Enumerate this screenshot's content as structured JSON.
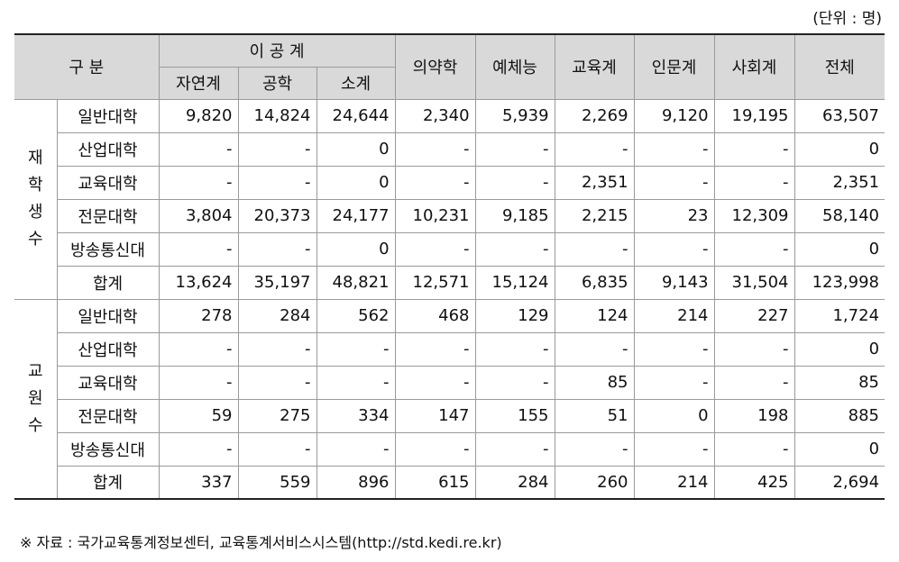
{
  "unit_note": "(단위 : 명)",
  "header": {
    "category": "구 분",
    "stem": "이 공 계",
    "stem_sub": [
      "자연계",
      "공학",
      "소계"
    ],
    "others": [
      "의약학",
      "예체능",
      "교육계",
      "인문계",
      "사회계",
      "전체"
    ]
  },
  "sections": [
    {
      "label": "재학생수",
      "rows": [
        {
          "name": "일반대학",
          "values": [
            "9,820",
            "14,824",
            "24,644",
            "2,340",
            "5,939",
            "2,269",
            "9,120",
            "19,195",
            "63,507"
          ]
        },
        {
          "name": "산업대학",
          "values": [
            "-",
            "-",
            "0",
            "-",
            "-",
            "-",
            "-",
            "-",
            "0"
          ]
        },
        {
          "name": "교육대학",
          "values": [
            "-",
            "-",
            "0",
            "-",
            "-",
            "2,351",
            "-",
            "-",
            "2,351"
          ]
        },
        {
          "name": "전문대학",
          "values": [
            "3,804",
            "20,373",
            "24,177",
            "10,231",
            "9,185",
            "2,215",
            "23",
            "12,309",
            "58,140"
          ]
        },
        {
          "name": "방송통신대",
          "values": [
            "-",
            "-",
            "0",
            "-",
            "-",
            "-",
            "-",
            "-",
            "0"
          ]
        },
        {
          "name": "합계",
          "values": [
            "13,624",
            "35,197",
            "48,821",
            "12,571",
            "15,124",
            "6,835",
            "9,143",
            "31,504",
            "123,998"
          ]
        }
      ]
    },
    {
      "label": "교원수",
      "rows": [
        {
          "name": "일반대학",
          "values": [
            "278",
            "284",
            "562",
            "468",
            "129",
            "124",
            "214",
            "227",
            "1,724"
          ]
        },
        {
          "name": "산업대학",
          "values": [
            "-",
            "-",
            "-",
            "-",
            "-",
            "-",
            "-",
            "-",
            "0"
          ]
        },
        {
          "name": "교육대학",
          "values": [
            "-",
            "-",
            "-",
            "-",
            "-",
            "85",
            "-",
            "-",
            "85"
          ]
        },
        {
          "name": "전문대학",
          "values": [
            "59",
            "275",
            "334",
            "147",
            "155",
            "51",
            "0",
            "198",
            "885"
          ]
        },
        {
          "name": "방송통신대",
          "values": [
            "-",
            "-",
            "-",
            "-",
            "-",
            "-",
            "-",
            "-",
            "0"
          ]
        },
        {
          "name": "합계",
          "values": [
            "337",
            "559",
            "896",
            "615",
            "284",
            "260",
            "214",
            "425",
            "2,694"
          ]
        }
      ]
    }
  ],
  "source": "※ 자료 : 국가교육통계정보센터, 교육통계서비스시스템(http://std.kedi.re.kr)"
}
